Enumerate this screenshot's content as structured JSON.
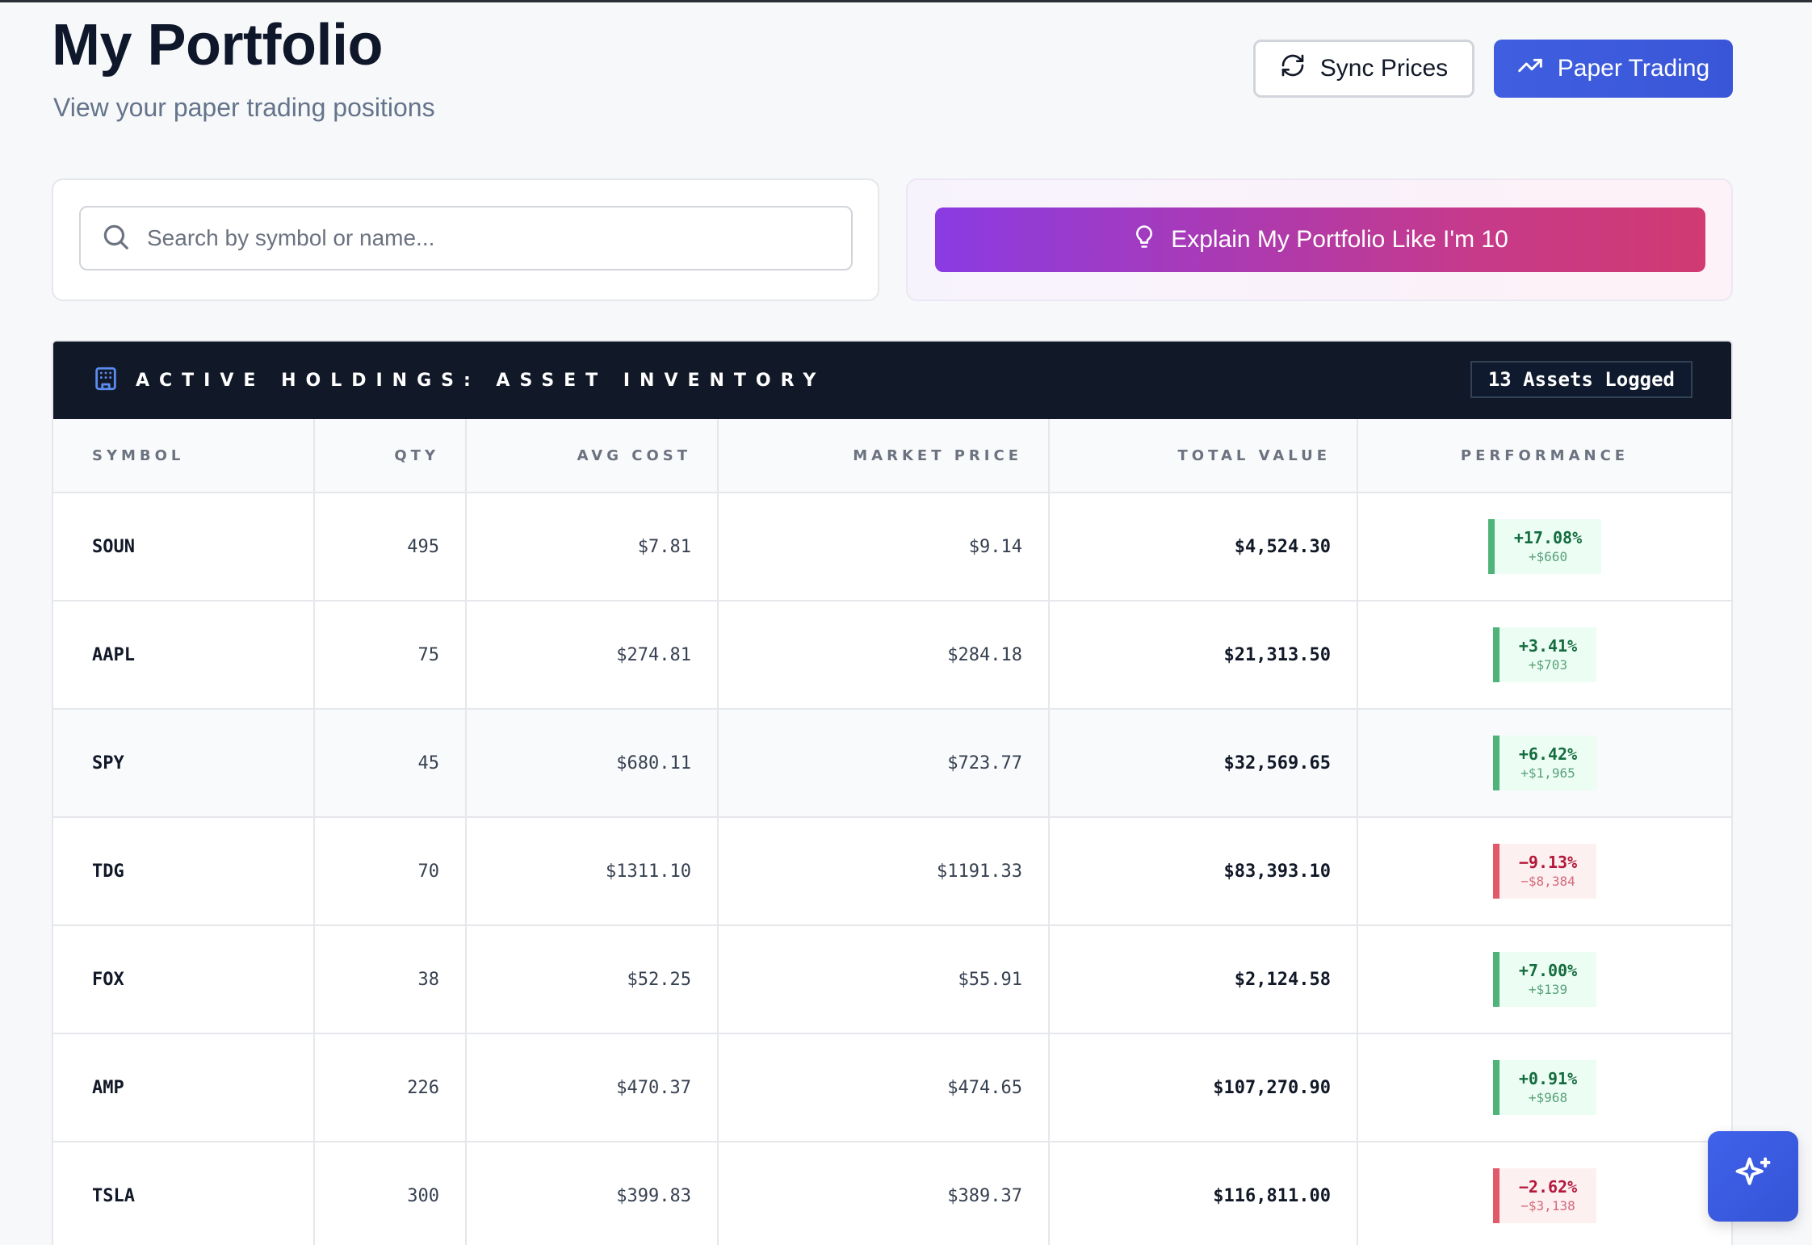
{
  "header": {
    "title": "My Portfolio",
    "subtitle": "View your paper trading positions",
    "sync_label": "Sync Prices",
    "paper_label": "Paper Trading"
  },
  "search": {
    "placeholder": "Search by symbol or name..."
  },
  "explain": {
    "label": "Explain My Portfolio Like I'm 10"
  },
  "holdings": {
    "title": "ACTIVE HOLDINGS: ASSET INVENTORY",
    "badge": "13 Assets Logged",
    "columns": [
      "SYMBOL",
      "QTY",
      "AVG COST",
      "MARKET PRICE",
      "TOTAL VALUE",
      "PERFORMANCE"
    ],
    "rows": [
      {
        "symbol": "SOUN",
        "qty": "495",
        "avg_cost": "$7.81",
        "market_price": "$9.14",
        "total_value": "$4,524.30",
        "pct": "+17.08%",
        "amt": "+$660"
      },
      {
        "symbol": "AAPL",
        "qty": "75",
        "avg_cost": "$274.81",
        "market_price": "$284.18",
        "total_value": "$21,313.50",
        "pct": "+3.41%",
        "amt": "+$703"
      },
      {
        "symbol": "SPY",
        "qty": "45",
        "avg_cost": "$680.11",
        "market_price": "$723.77",
        "total_value": "$32,569.65",
        "pct": "+6.42%",
        "amt": "+$1,965"
      },
      {
        "symbol": "TDG",
        "qty": "70",
        "avg_cost": "$1311.10",
        "market_price": "$1191.33",
        "total_value": "$83,393.10",
        "pct": "−9.13%",
        "amt": "−$8,384"
      },
      {
        "symbol": "FOX",
        "qty": "38",
        "avg_cost": "$52.25",
        "market_price": "$55.91",
        "total_value": "$2,124.58",
        "pct": "+7.00%",
        "amt": "+$139"
      },
      {
        "symbol": "AMP",
        "qty": "226",
        "avg_cost": "$470.37",
        "market_price": "$474.65",
        "total_value": "$107,270.90",
        "pct": "+0.91%",
        "amt": "+$968"
      },
      {
        "symbol": "TSLA",
        "qty": "300",
        "avg_cost": "$399.83",
        "market_price": "$389.37",
        "total_value": "$116,811.00",
        "pct": "−2.62%",
        "amt": "−$3,138"
      }
    ]
  },
  "colors": {
    "accent": "#3b5bdb",
    "positive": "#146c3f",
    "negative": "#b4183a",
    "header_bg": "#111827"
  },
  "icons": {
    "sync": "refresh-icon",
    "paper": "trending-up-icon",
    "search": "search-icon",
    "explain": "lightbulb-icon",
    "holdings": "building-icon",
    "fab": "sparkles-icon"
  }
}
